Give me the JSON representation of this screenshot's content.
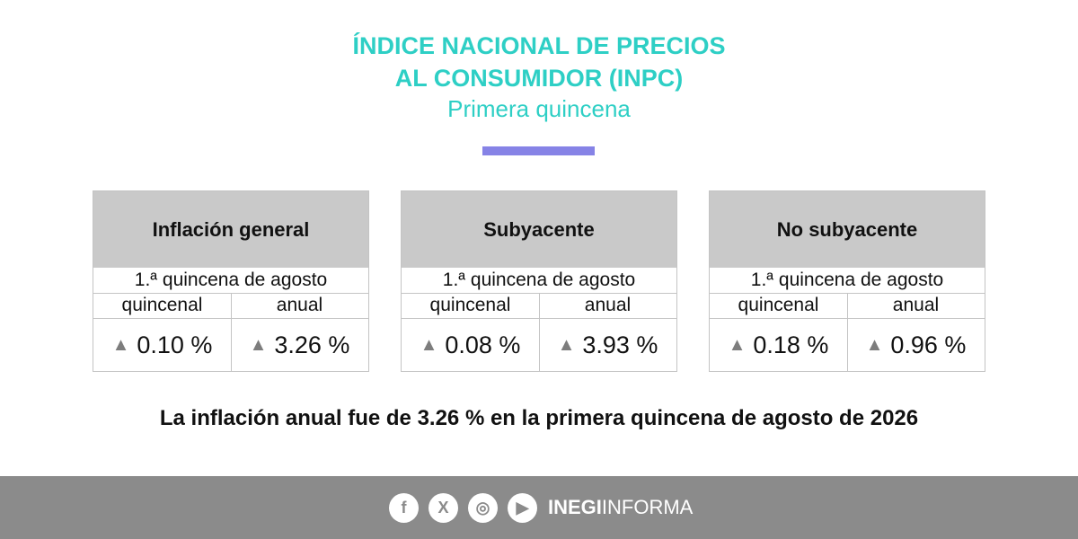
{
  "header": {
    "title_lines": [
      "ÍNDICE NACIONAL DE PRECIOS",
      "AL CONSUMIDOR (INPC)"
    ],
    "subtitle": "Primera quincena"
  },
  "cards": [
    {
      "title": "Inflación general",
      "period": "1.ª quincena de agosto",
      "columns": [
        "quincenal",
        "anual"
      ],
      "values": [
        "0.10 %",
        "3.26 %"
      ]
    },
    {
      "title": "Subyacente",
      "period": "1.ª quincena de agosto",
      "columns": [
        "quincenal",
        "anual"
      ],
      "values": [
        "0.08 %",
        "3.93 %"
      ]
    },
    {
      "title": "No subyacente",
      "period": "1.ª quincena de agosto",
      "columns": [
        "quincenal",
        "anual"
      ],
      "values": [
        "0.18 %",
        "0.96 %"
      ]
    }
  ],
  "summary": "La inflación anual fue de 3.26 % en la primera quincena de agosto de 2026",
  "footer": {
    "brand_bold": "INEGI",
    "brand_regular": "INFORMA"
  }
}
